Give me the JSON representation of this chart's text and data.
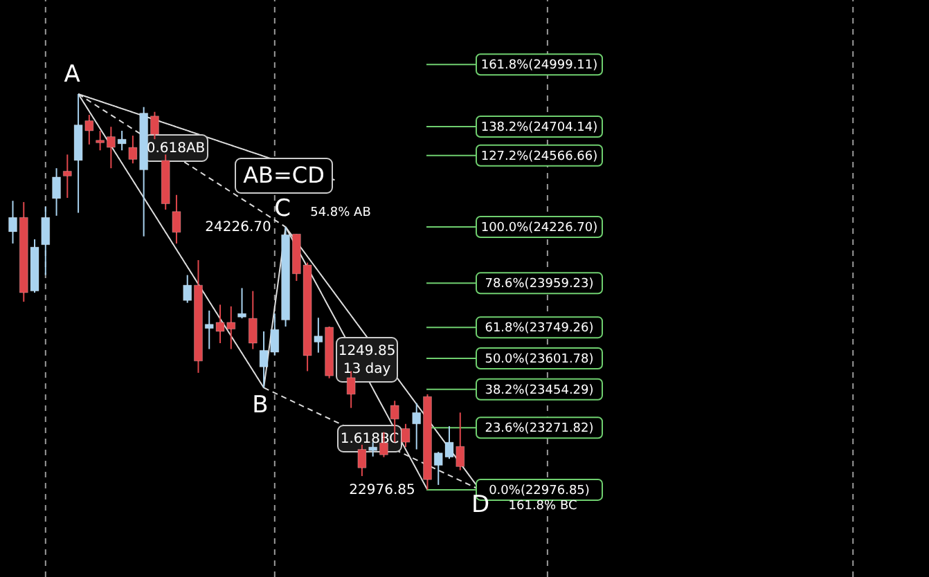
{
  "chart_data": {
    "type": "candlestick",
    "categories": [
      null,
      null,
      null,
      null,
      null,
      null,
      null,
      null,
      null,
      null,
      null,
      null,
      null,
      null,
      null,
      null,
      null,
      null,
      null,
      null,
      null,
      null,
      null,
      null,
      null,
      null,
      null,
      null,
      null,
      null,
      null,
      null,
      null,
      null,
      null,
      null,
      null,
      null,
      null,
      null,
      null,
      null
    ],
    "ohlc": [
      [
        24204,
        24351,
        24148,
        24272
      ],
      [
        24272,
        24345,
        23871,
        23914
      ],
      [
        23922,
        24168,
        23914,
        24131
      ],
      [
        24142,
        24323,
        23998,
        24272
      ],
      [
        24362,
        24506,
        24280,
        24464
      ],
      [
        24492,
        24571,
        24365,
        24469
      ],
      [
        24543,
        24859,
        24294,
        24712
      ],
      [
        24732,
        24760,
        24619,
        24684
      ],
      [
        24639,
        24684,
        24591,
        24627
      ],
      [
        24656,
        24703,
        24506,
        24605
      ],
      [
        24622,
        24684,
        24591,
        24644
      ],
      [
        24605,
        24661,
        24529,
        24548
      ],
      [
        24498,
        24797,
        24182,
        24768
      ],
      [
        24754,
        24774,
        24644,
        24667
      ],
      [
        24543,
        24571,
        24309,
        24337
      ],
      [
        24300,
        24379,
        24148,
        24201
      ],
      [
        23877,
        23998,
        23866,
        23950
      ],
      [
        23950,
        24069,
        23533,
        23589
      ],
      [
        23744,
        23829,
        23646,
        23764
      ],
      [
        23773,
        23857,
        23674,
        23730
      ],
      [
        23773,
        23849,
        23646,
        23741
      ],
      [
        23798,
        23936,
        23792,
        23815
      ],
      [
        23792,
        23922,
        23646,
        23674
      ],
      [
        23561,
        23730,
        23462,
        23640
      ],
      [
        23631,
        23815,
        23617,
        23739
      ],
      [
        23784,
        24226.7,
        23753,
        24190
      ],
      [
        24193,
        24193,
        23970,
        24004
      ],
      [
        24046,
        24057,
        23541,
        23615
      ],
      [
        23679,
        23795,
        23629,
        23708
      ],
      [
        23750,
        23753,
        23507,
        23519
      ],
      null,
      [
        23510,
        23541,
        23366,
        23431
      ],
      [
        23169,
        23191,
        23042,
        23081
      ],
      [
        23163,
        23203,
        23135,
        23180
      ],
      [
        23200,
        23251,
        23132,
        23143
      ],
      [
        23378,
        23400,
        23203,
        23313
      ],
      [
        23268,
        23290,
        23180,
        23203
      ],
      [
        23290,
        23389,
        23169,
        23344
      ],
      [
        23420,
        23431,
        22976.85,
        23025
      ],
      [
        23093,
        23157,
        23000,
        23152
      ],
      [
        23132,
        23279,
        23124,
        23203
      ],
      [
        23183,
        23344,
        23070,
        23087
      ]
    ],
    "colors": [
      "#a9d3f0",
      "#e0474c",
      "#a9d3f0",
      "#a9d3f0",
      "#a9d3f0",
      "#e0474c",
      "#a9d3f0",
      "#e0474c",
      "#e0474c",
      "#e0474c",
      "#a9d3f0",
      "#e0474c",
      "#a9d3f0",
      "#e0474c",
      "#e0474c",
      "#e0474c",
      "#a9d3f0",
      "#e0474c",
      "#a9d3f0",
      "#e0474c",
      "#e0474c",
      "#a9d3f0",
      "#e0474c",
      "#a9d3f0",
      "#a9d3f0",
      "#a9d3f0",
      "#e0474c",
      "#e0474c",
      "#a9d3f0",
      "#e0474c",
      null,
      "#e0474c",
      "#e0474c",
      "#a9d3f0",
      "#e0474c",
      "#e0474c",
      "#e0474c",
      "#a9d3f0",
      "#e0474c",
      "#a9d3f0",
      "#a9d3f0",
      "#e0474c"
    ],
    "ylim": [
      22562,
      25306
    ],
    "tick_labels": false,
    "ref_lines": [
      {
        "axis": "y",
        "value": 24999.11,
        "label": "161.8%(24999.11)",
        "color": "#6fcf6f"
      },
      {
        "axis": "y",
        "value": 24704.14,
        "label": "138.2%(24704.14)",
        "color": "#6fcf6f"
      },
      {
        "axis": "y",
        "value": 24566.66,
        "label": "127.2%(24566.66)",
        "color": "#6fcf6f"
      },
      {
        "axis": "y",
        "value": 24226.7,
        "label": "100.0%(24226.70)",
        "color": "#6fcf6f"
      },
      {
        "axis": "y",
        "value": 23959.23,
        "label": "78.6%(23959.23)",
        "color": "#6fcf6f"
      },
      {
        "axis": "y",
        "value": 23749.26,
        "label": "61.8%(23749.26)",
        "color": "#6fcf6f"
      },
      {
        "axis": "y",
        "value": 23601.78,
        "label": "50.0%(23601.78)",
        "color": "#6fcf6f"
      },
      {
        "axis": "y",
        "value": 23454.29,
        "label": "38.2%(23454.29)",
        "color": "#6fcf6f"
      },
      {
        "axis": "y",
        "value": 23271.82,
        "label": "23.6%(23271.82)",
        "color": "#6fcf6f"
      },
      {
        "axis": "y",
        "value": 22976.85,
        "label": "0.0%(22976.85)",
        "color": "#6fcf6f"
      }
    ],
    "annotations": [
      {
        "text": "A",
        "y": 24859
      },
      {
        "text": "B",
        "y": 23462
      },
      {
        "text": "C",
        "y": 24226.7
      },
      {
        "text": "D",
        "y": 22976.85
      },
      "AB=CD",
      "0.618AB",
      "54.8% AB",
      "24226.70",
      "1249.85\n13 day",
      "1.618BC",
      "22976.85",
      "161.8% BC"
    ]
  }
}
